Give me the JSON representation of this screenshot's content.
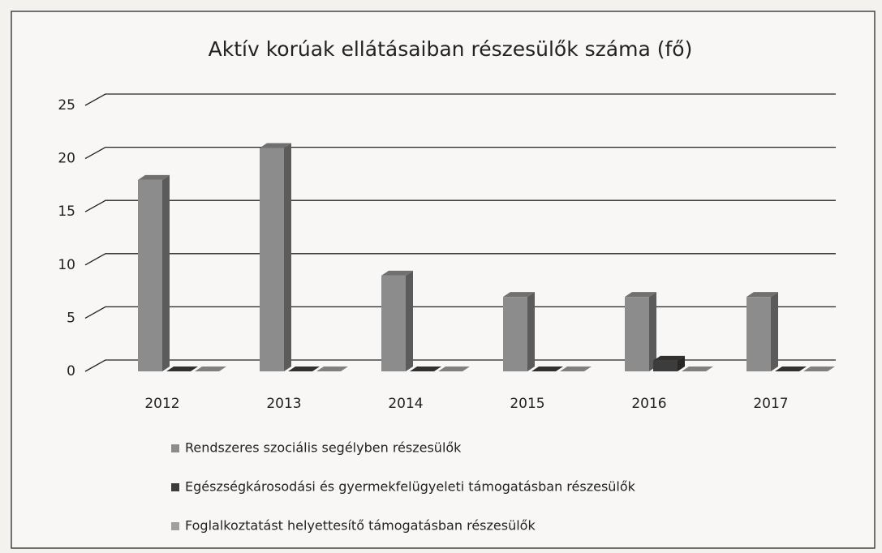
{
  "chart_data": {
    "type": "bar3d",
    "title": "Aktív korúak ellátásaiban részesülők száma (fő)",
    "categories": [
      "2012",
      "2013",
      "2014",
      "2015",
      "2016",
      "2017"
    ],
    "series": [
      {
        "name": "Rendszeres szociális segélyben részesülők",
        "color": "#8c8c8c",
        "values": [
          18,
          21,
          9,
          7,
          7,
          7
        ]
      },
      {
        "name": "Egészségkárosodási és gyermekfelügyeleti támogatásban részesülők",
        "color": "#3c3c3c",
        "values": [
          0,
          0,
          0,
          0,
          1,
          0
        ]
      },
      {
        "name": "Foglalkoztatást helyettesítő támogatásban részesülők",
        "color": "#a0a0a0",
        "values": [
          0,
          0,
          0,
          0,
          0,
          0
        ]
      }
    ],
    "ylim": [
      0,
      25
    ],
    "yticks": [
      0,
      5,
      10,
      15,
      20,
      25
    ],
    "grid": true,
    "legend": "bottom"
  }
}
